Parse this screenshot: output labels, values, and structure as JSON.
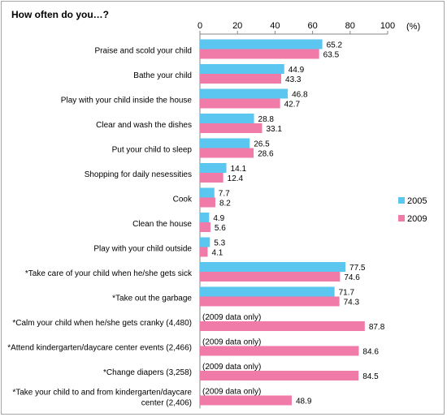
{
  "chart_data": {
    "type": "bar",
    "orientation": "horizontal",
    "title": "How often do you…?",
    "x_unit": "(%)",
    "xlim": [
      0,
      100
    ],
    "x_ticks": [
      "0",
      "20",
      "40",
      "60",
      "80",
      "100"
    ],
    "grid": false,
    "legend": {
      "placement": "right",
      "entries": [
        "2005",
        "2009"
      ]
    },
    "categories": [
      "Praise and scold your child",
      "Bathe your child",
      "Play with your child inside the house",
      "Clear and wash the dishes",
      "Put your child to sleep",
      "Shopping for daily nesessities",
      "Cook",
      "Clean the house",
      "Play with your child outside",
      "*Take care of your child when he/she gets sick",
      "*Take out the garbage",
      "*Calm your child when he/she gets cranky (4,480)",
      "*Attend kindergarten/daycare center events (2,466)",
      "*Change diapers (3,258)",
      "*Take your child to and from kindergarten/daycare center (2,406)"
    ],
    "series": [
      {
        "name": "2005",
        "color": "#5bc6f0",
        "values": [
          65.2,
          44.9,
          46.8,
          28.8,
          26.5,
          14.1,
          7.7,
          4.9,
          5.3,
          77.5,
          71.7,
          null,
          null,
          null,
          null
        ]
      },
      {
        "name": "2009",
        "color": "#f07aa8",
        "values": [
          63.5,
          43.3,
          42.7,
          33.1,
          28.6,
          12.4,
          8.2,
          5.6,
          4.1,
          74.6,
          74.3,
          87.8,
          84.6,
          84.5,
          48.9
        ]
      }
    ],
    "annotations": [
      "(2009 data only)",
      "(2009 data only)",
      "(2009 data only)",
      "(2009 data only)"
    ]
  }
}
